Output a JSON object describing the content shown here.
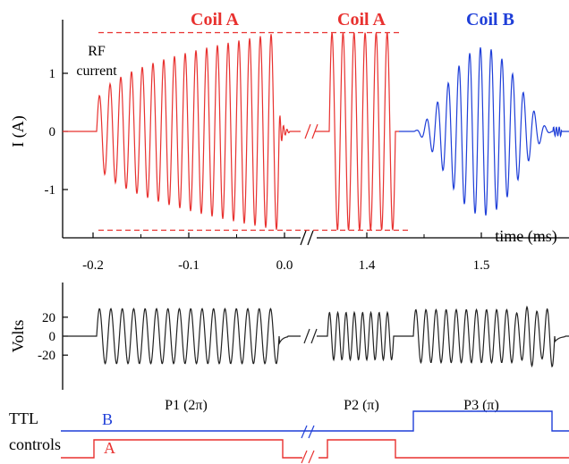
{
  "chart_data": [
    {
      "type": "line",
      "panel": "rf-current",
      "ylabel": "I (A)",
      "xlabel": "time (ms)",
      "ylim": [
        -1.7,
        1.7
      ],
      "yticks": [
        1,
        0,
        -1
      ],
      "ytick_labels": [
        "1",
        "0",
        "-1"
      ],
      "xtick_labels": [
        "-0.2",
        "-0.1",
        "0.0",
        "1.4",
        "1.5"
      ],
      "xtick_values": [
        -0.2,
        -0.1,
        0.0,
        1.4,
        1.5
      ],
      "axis_break": true,
      "annotation": [
        "RF",
        "current"
      ],
      "reference_lines": {
        "values": [
          1.7,
          -1.7
        ],
        "style": "dashed",
        "color": "#e8312f"
      },
      "series": [
        {
          "name": "Coil A",
          "color": "#e8312f",
          "x_range": [
            -0.23,
            0.0
          ],
          "cycles": 17,
          "peak": 1.7,
          "envelope": "rising"
        },
        {
          "name": "Coil A",
          "color": "#e8312f",
          "x_range": [
            1.36,
            1.44
          ],
          "cycles": 6,
          "peak": 1.7,
          "envelope": "flat"
        },
        {
          "name": "Coil B",
          "color": "#1f3fd8",
          "x_range": [
            1.44,
            1.62
          ],
          "cycles": 13,
          "peak": 1.45,
          "envelope": "bell"
        }
      ]
    },
    {
      "type": "line",
      "panel": "voltage",
      "ylabel": "Volts",
      "ylim": [
        -30,
        30
      ],
      "yticks": [
        20,
        0,
        -20
      ],
      "ytick_labels": [
        "20",
        "0",
        "-20"
      ],
      "color": "#222222",
      "pulses": [
        {
          "label": "P1 (2π)",
          "cycles": 16,
          "amplitude": 29
        },
        {
          "label": "P2 (π)",
          "cycles": 8,
          "amplitude": 25
        },
        {
          "label": "P3 (π)",
          "cycles": 14,
          "amplitude": 28
        }
      ]
    },
    {
      "type": "line",
      "panel": "ttl-controls",
      "labels": [
        "TTL",
        "controls"
      ],
      "series": [
        {
          "name": "B",
          "color": "#1f3fd8",
          "state": "high during P3"
        },
        {
          "name": "A",
          "color": "#e8312f",
          "state": "high during P1 and P2"
        }
      ]
    }
  ]
}
